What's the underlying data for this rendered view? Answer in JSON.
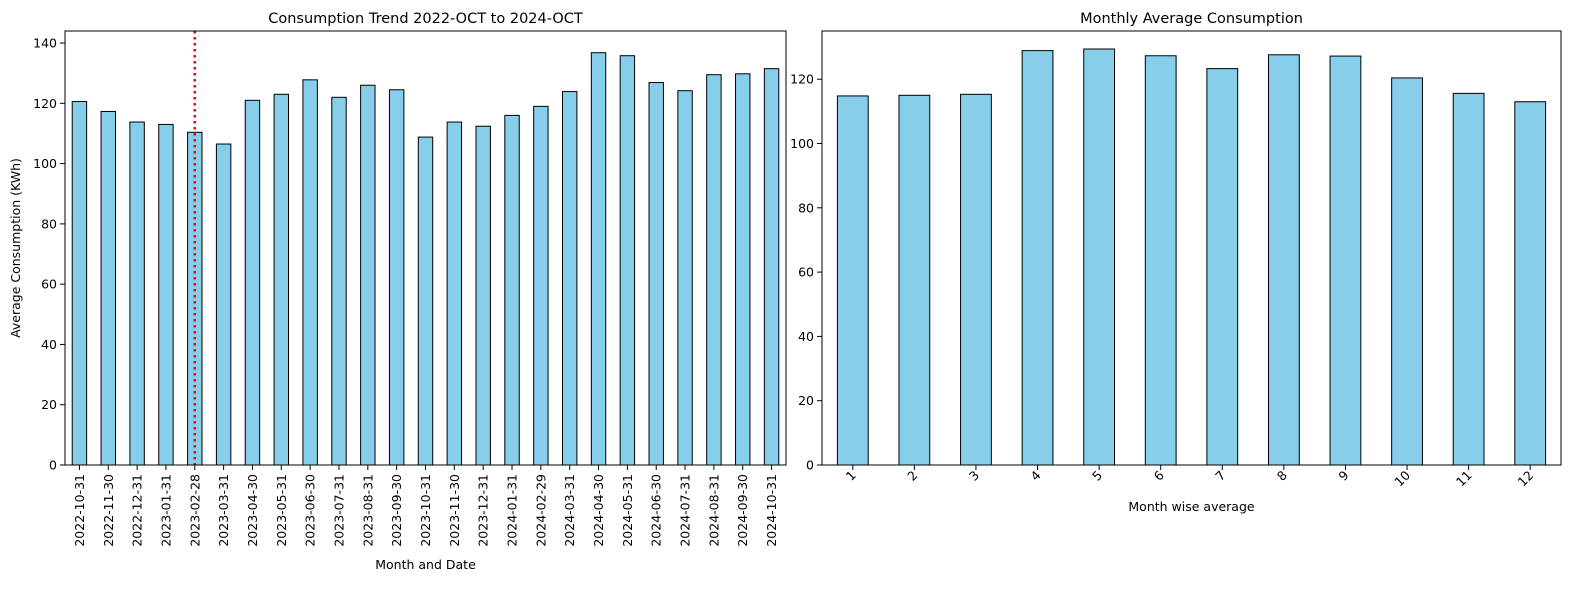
{
  "chart_data": [
    {
      "type": "bar",
      "title": "Consumption Trend 2022-OCT to 2024-OCT",
      "xlabel": "Month and Date",
      "ylabel": "Average Consumption (KWh)",
      "ylim": [
        0,
        144
      ],
      "yticks": [
        0,
        20,
        40,
        60,
        80,
        100,
        120,
        140
      ],
      "categories": [
        "2022-10-31",
        "2022-11-30",
        "2022-12-31",
        "2023-01-31",
        "2023-02-28",
        "2023-03-31",
        "2023-04-30",
        "2023-05-31",
        "2023-06-30",
        "2023-07-31",
        "2023-08-31",
        "2023-09-30",
        "2023-10-31",
        "2023-11-30",
        "2023-12-31",
        "2024-01-31",
        "2024-02-29",
        "2024-03-31",
        "2024-04-30",
        "2024-05-31",
        "2024-06-30",
        "2024-07-31",
        "2024-08-31",
        "2024-09-30",
        "2024-10-31"
      ],
      "values": [
        120.6,
        117.3,
        113.8,
        113.0,
        110.4,
        106.5,
        121.0,
        123.0,
        127.8,
        122.0,
        126.0,
        124.5,
        108.8,
        113.8,
        112.4,
        116.0,
        119.0,
        123.9,
        136.8,
        135.8,
        126.9,
        124.2,
        129.5,
        129.8,
        131.5
      ],
      "bar_color": "#87ceeb",
      "edge_color": "#000000",
      "tick_rotation": 90,
      "reference_line": {
        "category": "2023-02-28",
        "color": "#ff0000",
        "style": "dotted"
      },
      "grid": false,
      "legend": "none"
    },
    {
      "type": "bar",
      "title": "Monthly Average Consumption",
      "xlabel": "Month wise average",
      "ylabel": "",
      "ylim": [
        0,
        135
      ],
      "yticks": [
        0,
        20,
        40,
        60,
        80,
        100,
        120
      ],
      "categories": [
        "1",
        "2",
        "3",
        "4",
        "5",
        "6",
        "7",
        "8",
        "9",
        "10",
        "11",
        "12"
      ],
      "values": [
        114.8,
        115.0,
        115.3,
        128.9,
        129.4,
        127.3,
        123.3,
        127.6,
        127.2,
        120.4,
        115.6,
        113.0
      ],
      "bar_color": "#87ceeb",
      "edge_color": "#000000",
      "tick_rotation": 45,
      "grid": false,
      "legend": "none"
    }
  ]
}
